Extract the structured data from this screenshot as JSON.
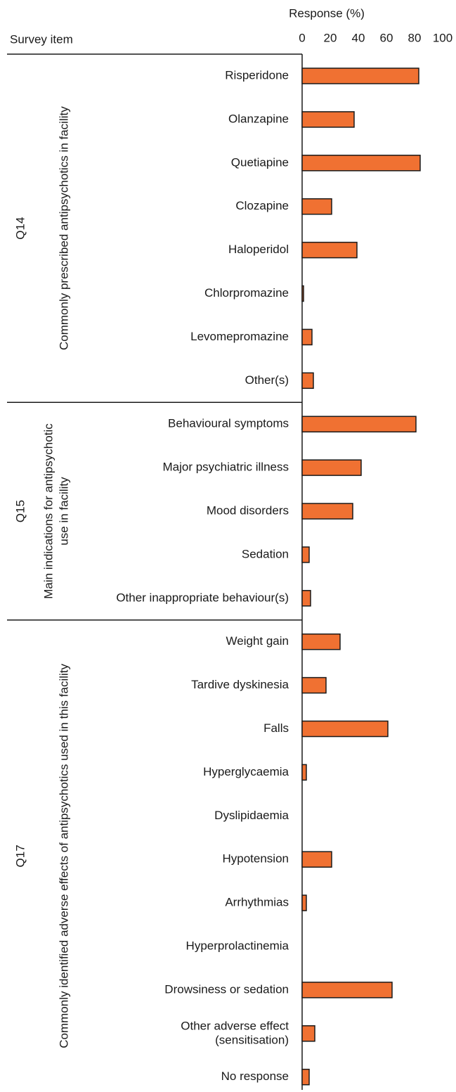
{
  "chart_data": {
    "type": "bar",
    "orientation": "horizontal",
    "xlabel": "Response (%)",
    "ylabel": "Survey item",
    "xlim": [
      0,
      100
    ],
    "xticks": [
      0,
      20,
      40,
      60,
      80,
      100
    ],
    "color": "#f07132",
    "groups": [
      {
        "name": "Q14",
        "label": [
          "Commonly prescribed antipsychotics in facility"
        ],
        "categories": [
          [
            "Risperidone"
          ],
          [
            "Olanzapine"
          ],
          [
            "Quetiapine"
          ],
          [
            "Clozapine"
          ],
          [
            "Haloperidol"
          ],
          [
            "Chlorpromazine"
          ],
          [
            "Levomepromazine"
          ],
          [
            "Other(s)"
          ]
        ],
        "values": [
          83,
          37,
          84,
          21,
          39,
          1,
          7,
          8
        ]
      },
      {
        "name": "Q15",
        "label": [
          "Main indications for antipsychotic",
          "use in facility"
        ],
        "categories": [
          [
            "Behavioural symptoms"
          ],
          [
            "Major psychiatric illness"
          ],
          [
            "Mood disorders"
          ],
          [
            "Sedation"
          ],
          [
            "Other inappropriate behaviour(s)"
          ]
        ],
        "values": [
          81,
          42,
          36,
          5,
          6
        ]
      },
      {
        "name": "Q17",
        "label": [
          "Commonly identified adverse effects of antipsychotics used in this facility"
        ],
        "categories": [
          [
            "Weight gain"
          ],
          [
            "Tardive dyskinesia"
          ],
          [
            "Falls"
          ],
          [
            "Hyperglycaemia"
          ],
          [
            "Dyslipidaemia"
          ],
          [
            "Hypotension"
          ],
          [
            "Arrhythmias"
          ],
          [
            "Hyperprolactinemia"
          ],
          [
            "Drowsiness or sedation"
          ],
          [
            "Other adverse effect",
            "(sensitisation)"
          ],
          [
            "No response"
          ]
        ],
        "values": [
          27,
          17,
          61,
          3,
          0,
          21,
          3,
          0,
          64,
          9,
          5
        ]
      }
    ]
  }
}
